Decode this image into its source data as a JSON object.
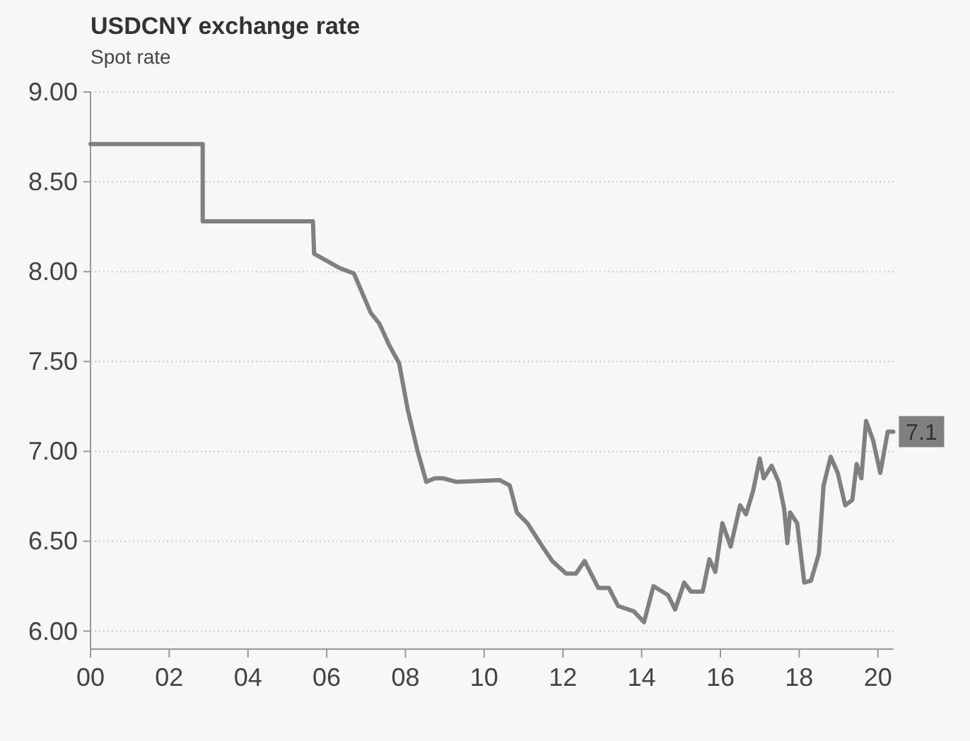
{
  "chart_data": {
    "type": "line",
    "title": "USDCNY exchange rate",
    "subtitle": "Spot rate",
    "x": [
      2000,
      2002.85,
      2002.85,
      2005.65,
      2005.68,
      2006.33,
      2006.69,
      2007.12,
      2007.34,
      2007.59,
      2007.84,
      2008.06,
      2008.31,
      2008.53,
      2008.74,
      2008.96,
      2009.3,
      2010.4,
      2010.65,
      2010.83,
      2011.1,
      2011.48,
      2011.73,
      2012.08,
      2012.33,
      2012.55,
      2012.9,
      2013.17,
      2013.4,
      2013.8,
      2014.06,
      2014.3,
      2014.67,
      2014.85,
      2015.08,
      2015.25,
      2015.55,
      2015.72,
      2015.87,
      2016.05,
      2016.26,
      2016.5,
      2016.65,
      2016.83,
      2017.0,
      2017.1,
      2017.3,
      2017.48,
      2017.62,
      2017.7,
      2017.77,
      2017.95,
      2018.13,
      2018.3,
      2018.5,
      2018.62,
      2018.8,
      2018.98,
      2019.17,
      2019.35,
      2019.46,
      2019.58,
      2019.7,
      2019.88,
      2020.06,
      2020.25,
      2020.39
    ],
    "series": [
      {
        "color": "#808080",
        "values": [
          8.71,
          8.71,
          8.28,
          8.28,
          8.1,
          8.02,
          7.99,
          7.77,
          7.71,
          7.59,
          7.49,
          7.23,
          7.0,
          6.83,
          6.85,
          6.85,
          6.83,
          6.84,
          6.81,
          6.66,
          6.6,
          6.47,
          6.39,
          6.32,
          6.32,
          6.39,
          6.24,
          6.24,
          6.14,
          6.11,
          6.05,
          6.25,
          6.2,
          6.12,
          6.27,
          6.22,
          6.22,
          6.4,
          6.33,
          6.6,
          6.47,
          6.7,
          6.65,
          6.78,
          6.96,
          6.85,
          6.92,
          6.83,
          6.68,
          6.49,
          6.66,
          6.6,
          6.27,
          6.28,
          6.43,
          6.81,
          6.97,
          6.88,
          6.7,
          6.73,
          6.93,
          6.85,
          7.17,
          7.06,
          6.88,
          7.11,
          7.11
        ],
        "value_labels": [
          null,
          null,
          null,
          null,
          null,
          null,
          null,
          null,
          null,
          null,
          null,
          null,
          null,
          null,
          null,
          null,
          null,
          null,
          null,
          null,
          null,
          null,
          null,
          null,
          null,
          null,
          null,
          null,
          null,
          null,
          null,
          null,
          null,
          null,
          null,
          null,
          null,
          null,
          null,
          null,
          null,
          null,
          null,
          null,
          null,
          null,
          null,
          null,
          null,
          null,
          null,
          null,
          null,
          null,
          null,
          null,
          null,
          null,
          null,
          null,
          null,
          null,
          null,
          null,
          null,
          null,
          "7.1"
        ]
      }
    ],
    "xlim": [
      2000,
      2020.4
    ],
    "xticks": [
      {
        "value": 2000,
        "label": "00"
      },
      {
        "value": 2002,
        "label": "02"
      },
      {
        "value": 2004,
        "label": "04"
      },
      {
        "value": 2006,
        "label": "06"
      },
      {
        "value": 2008,
        "label": "08"
      },
      {
        "value": 2010,
        "label": "10"
      },
      {
        "value": 2012,
        "label": "12"
      },
      {
        "value": 2014,
        "label": "14"
      },
      {
        "value": 2016,
        "label": "16"
      },
      {
        "value": 2018,
        "label": "18"
      },
      {
        "value": 2020,
        "label": "20"
      }
    ],
    "ylim": [
      5.9,
      9.0
    ],
    "yticks": [
      {
        "value": 6,
        "label": "6.00"
      },
      {
        "value": 6.5,
        "label": "6.50"
      },
      {
        "value": 7,
        "label": "7.00"
      },
      {
        "value": 7.5,
        "label": "7.50"
      },
      {
        "value": 8,
        "label": "8.00"
      },
      {
        "value": 8.5,
        "label": "8.50"
      },
      {
        "value": 9,
        "label": "9.00"
      }
    ],
    "grid": "y"
  }
}
